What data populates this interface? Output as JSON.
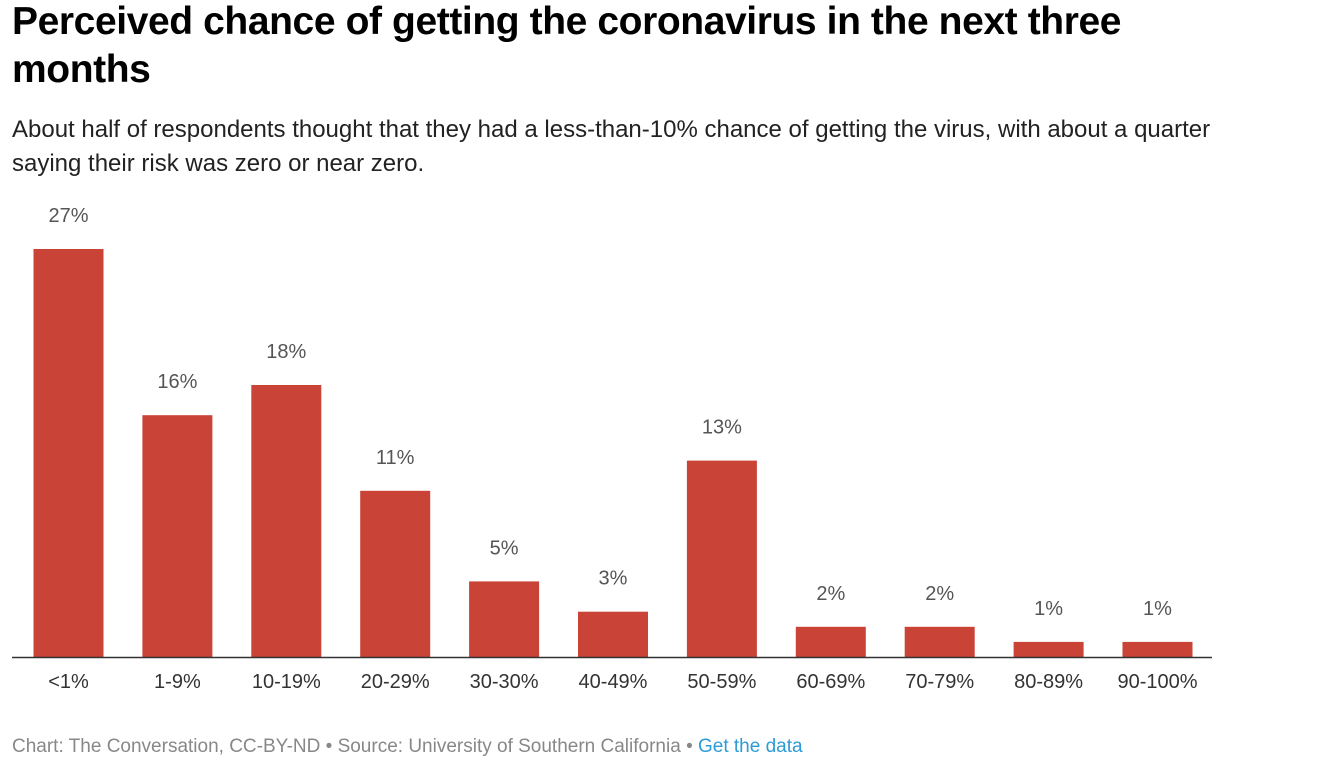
{
  "header": {
    "title": "Perceived chance of getting the coronavirus in the next three months",
    "subtitle": "About half of respondents thought that they had a less-than-10% chance of getting the virus, with about a quarter saying their risk was zero or near zero."
  },
  "footer": {
    "credit": "Chart: The Conversation, CC-BY-ND",
    "separator": "•",
    "source": "Source: University of Southern California",
    "link_label": "Get the data"
  },
  "colors": {
    "bar": "#c94336",
    "axis": "#333333",
    "label": "#555555",
    "tick": "#333333",
    "link": "#2d9bd7"
  },
  "chart_data": {
    "type": "bar",
    "title": "Perceived chance of getting the coronavirus in the next three months",
    "categories": [
      "<1%",
      "1-9%",
      "10-19%",
      "20-29%",
      "30-30%",
      "40-49%",
      "50-59%",
      "60-69%",
      "70-79%",
      "80-89%",
      "90-100%"
    ],
    "values": [
      27,
      16,
      18,
      11,
      5,
      3,
      13,
      2,
      2,
      1,
      1
    ],
    "value_labels": [
      "27%",
      "16%",
      "18%",
      "11%",
      "5%",
      "3%",
      "13%",
      "2%",
      "2%",
      "1%",
      "1%"
    ],
    "value_unit": "%",
    "ylim": [
      0,
      27
    ],
    "grid": false,
    "legend": "none"
  }
}
